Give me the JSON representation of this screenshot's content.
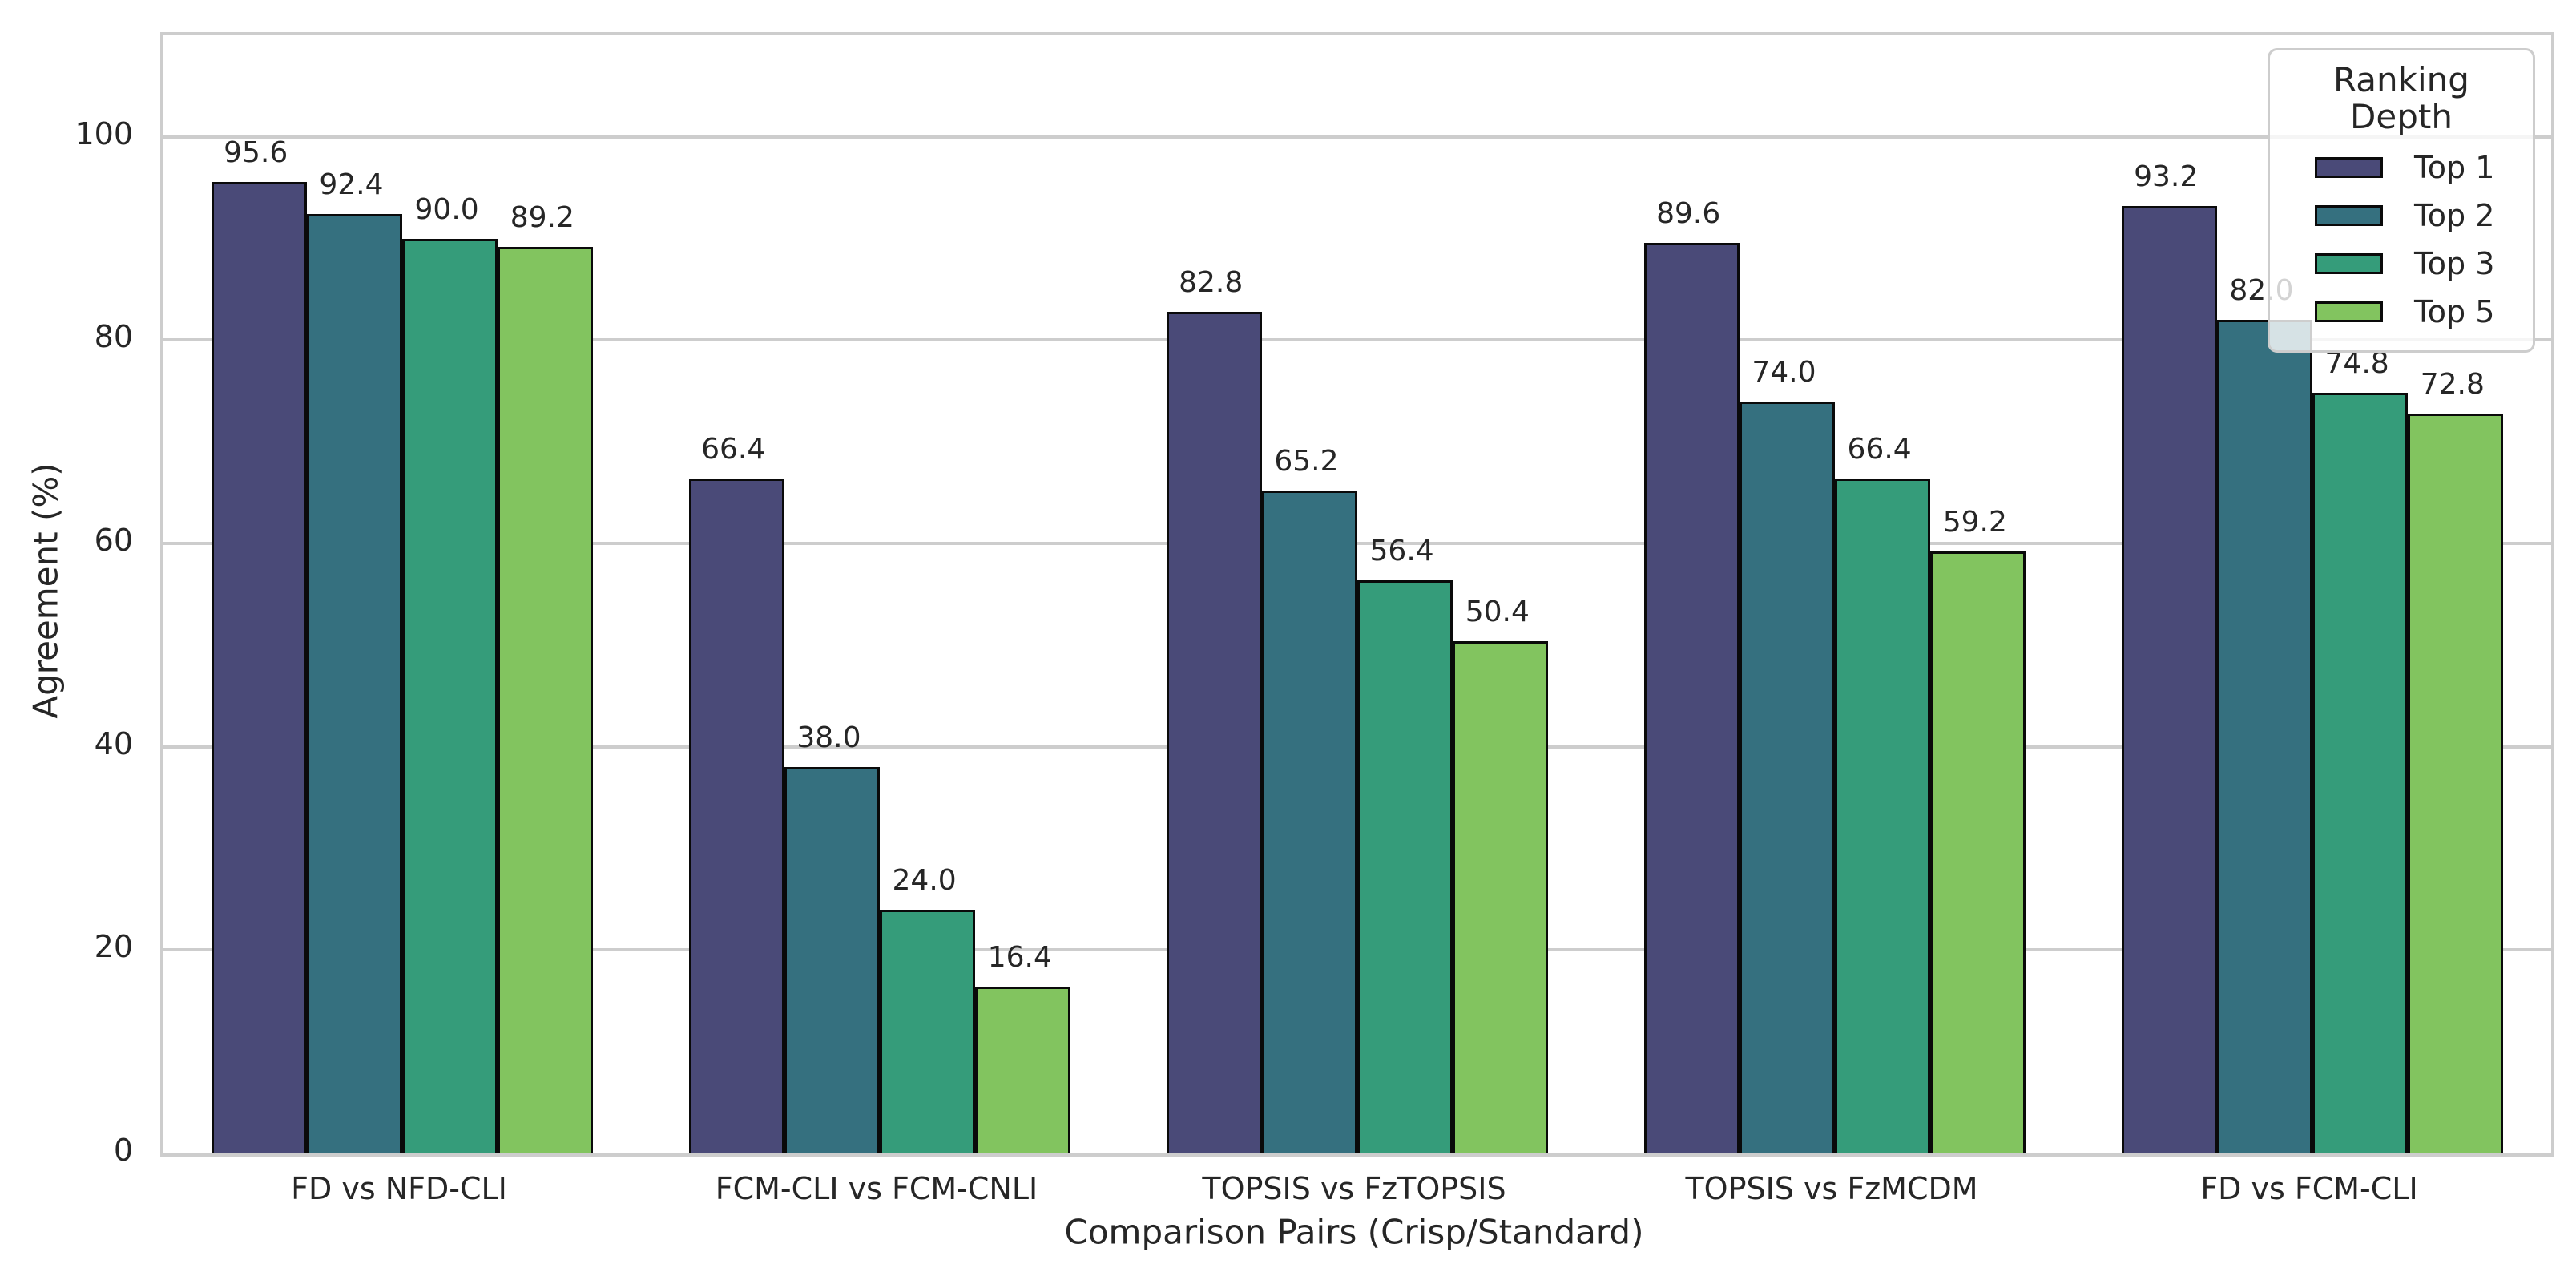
{
  "chart_data": {
    "type": "bar",
    "title": "",
    "xlabel": "Comparison Pairs (Crisp/Standard)",
    "ylabel": "Agreement (%)",
    "ylim": [
      0,
      110
    ],
    "yticks": [
      0,
      20,
      40,
      60,
      80,
      100
    ],
    "grid": "horizontal-major-only",
    "legend_title": "Ranking Depth",
    "legend_position": "upper right",
    "bar_label_decimals": 1,
    "categories": [
      "FD vs NFD-CLI",
      "FCM-CLI vs FCM-CNLI",
      "TOPSIS vs FzTOPSIS",
      "TOPSIS vs FzMCDM",
      "FD vs FCM-CLI"
    ],
    "series": [
      {
        "name": "Top 1",
        "color": "#4a4a78",
        "values": [
          95.6,
          66.4,
          82.8,
          89.6,
          93.2
        ]
      },
      {
        "name": "Top 2",
        "color": "#35707f",
        "values": [
          92.4,
          38.0,
          65.2,
          74.0,
          82.0
        ]
      },
      {
        "name": "Top 3",
        "color": "#359c7a",
        "values": [
          90.0,
          24.0,
          56.4,
          66.4,
          74.8
        ]
      },
      {
        "name": "Top 5",
        "color": "#82c45f",
        "values": [
          89.2,
          16.4,
          50.4,
          59.2,
          72.8
        ]
      }
    ],
    "colors": {
      "grid": "#cdcdcd",
      "spine": "#cdcdcd",
      "bar_edge": "#0a0a0a",
      "text": "#262626",
      "background": "#ffffff"
    }
  }
}
